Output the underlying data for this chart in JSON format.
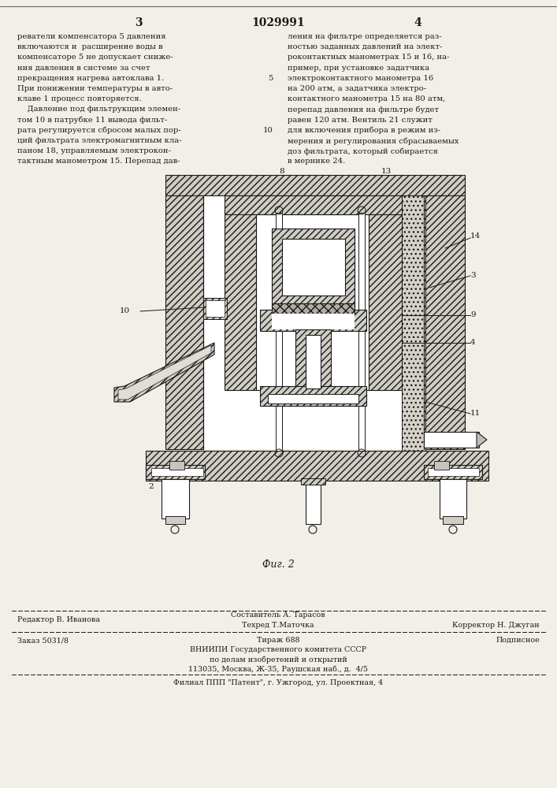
{
  "page_background": "#f2efe8",
  "header": {
    "left_num": "3",
    "center_num": "1029991",
    "right_num": "4"
  },
  "left_col_text": [
    "реватели компенсатора 5 давления",
    "включаются и  расширение воды в",
    "компенсаторе 5 не допускает сниже-",
    "ния давления в системе за счет",
    "прекращения нагрева автоклава 1.",
    "При понижении температуры в авто-",
    "клаве 1 процесс повторяется.",
    "    Давление под фильтрукщим элемен-",
    "том 10 в патрубке 11 вывода фильт-",
    "рата регулируется сбросом малых пор-",
    "ций фильтрата электромагнитным кла-",
    "паном 18, управляемым электрокон-",
    "тактным манометром 15. Перепад дав-"
  ],
  "right_col_text": [
    "ления на фильтре определяется раз-",
    "ностью заданных давлений на элект-",
    "роконтактных манометрах 15 и 16, на-",
    "пример, при установке задатчика",
    "электроконтактного манометра 16",
    "на 200 атм, а задатчика электро-",
    "контактного манометра 15 на 80 атм,",
    "перепад давления на фильтре будет",
    "равен 120 атм. Вентиль 21 служит",
    "для включения прибора в режим из-",
    "мерения и регулирования сбрасываемых",
    "доз фильтрата, который собирается",
    "в мернике 24."
  ],
  "line_num_5_idx": 4,
  "line_num_10_idx": 9,
  "fig_caption": "Фиг. 2",
  "footer_line1_left": "Редактор В. Иванова",
  "footer_line1_center_top": "Составитель А. Тарасов",
  "footer_line1_center_bot": "Техред Т.Маточка",
  "footer_line1_right": "Корректор Н. Джуган",
  "footer_line2_left": "Заказ 5031/8",
  "footer_line2_center": "Тираж 688",
  "footer_line2_right": "Подписное",
  "footer_vnipi1": "ВНИИПИ Государственного комитета СССР",
  "footer_vnipi2": "по делам изобретений и открытий",
  "footer_vnipi3": "113035, Москва, Ж-35, Раушская наб., д.  4/5",
  "footer_filial": "Филиал ППП \"Патент\", г. Ужгород, ул. Проектная, 4"
}
